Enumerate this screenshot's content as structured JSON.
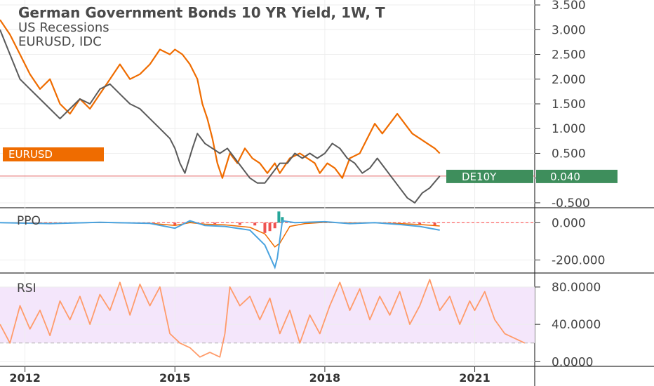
{
  "chart_data": {
    "type": "line",
    "legend": {
      "title": "German Government Bonds 10 YR Yield, 1W, T",
      "overlays": [
        "US Recessions",
        "EURUSD, IDC"
      ]
    },
    "x_ticks": [
      "2012",
      "2015",
      "2018",
      "2021"
    ],
    "panes": [
      {
        "name": "main",
        "y_ticks": [
          "3.500",
          "3.000",
          "2.500",
          "2.000",
          "1.500",
          "1.000",
          "0.500",
          "0.000",
          "-0.500"
        ],
        "ylim": [
          -0.6,
          3.6
        ],
        "series": [
          {
            "name": "EURUSD",
            "color": "#ef6c00",
            "points": [
              [
                2011.5,
                3.2
              ],
              [
                2011.7,
                2.9
              ],
              [
                2011.9,
                2.5
              ],
              [
                2012.1,
                2.1
              ],
              [
                2012.3,
                1.8
              ],
              [
                2012.5,
                2.0
              ],
              [
                2012.7,
                1.5
              ],
              [
                2012.9,
                1.3
              ],
              [
                2013.1,
                1.6
              ],
              [
                2013.3,
                1.4
              ],
              [
                2013.5,
                1.7
              ],
              [
                2013.7,
                2.0
              ],
              [
                2013.9,
                2.3
              ],
              [
                2014.1,
                2.0
              ],
              [
                2014.3,
                2.1
              ],
              [
                2014.5,
                2.3
              ],
              [
                2014.7,
                2.6
              ],
              [
                2014.9,
                2.5
              ],
              [
                2015.0,
                2.6
              ],
              [
                2015.15,
                2.5
              ],
              [
                2015.3,
                2.3
              ],
              [
                2015.45,
                2.0
              ],
              [
                2015.55,
                1.5
              ],
              [
                2015.65,
                1.2
              ],
              [
                2015.75,
                0.8
              ],
              [
                2015.85,
                0.3
              ],
              [
                2015.95,
                0.0
              ],
              [
                2016.1,
                0.5
              ],
              [
                2016.25,
                0.3
              ],
              [
                2016.4,
                0.6
              ],
              [
                2016.55,
                0.4
              ],
              [
                2016.7,
                0.3
              ],
              [
                2016.85,
                0.1
              ],
              [
                2017.0,
                0.3
              ],
              [
                2017.1,
                0.1
              ],
              [
                2017.3,
                0.4
              ],
              [
                2017.5,
                0.5
              ],
              [
                2017.65,
                0.4
              ],
              [
                2017.8,
                0.3
              ],
              [
                2017.9,
                0.1
              ],
              [
                2018.05,
                0.3
              ],
              [
                2018.2,
                0.2
              ],
              [
                2018.35,
                0.0
              ],
              [
                2018.5,
                0.4
              ],
              [
                2018.7,
                0.5
              ],
              [
                2018.85,
                0.8
              ],
              [
                2019.0,
                1.1
              ],
              [
                2019.15,
                0.9
              ],
              [
                2019.3,
                1.1
              ],
              [
                2019.45,
                1.3
              ],
              [
                2019.6,
                1.1
              ],
              [
                2019.75,
                0.9
              ],
              [
                2019.9,
                0.8
              ],
              [
                2020.05,
                0.7
              ],
              [
                2020.2,
                0.6
              ],
              [
                2020.3,
                0.5
              ]
            ]
          },
          {
            "name": "DE10Y",
            "color": "#5a5a5a",
            "points": [
              [
                2011.5,
                3.0
              ],
              [
                2011.7,
                2.5
              ],
              [
                2011.9,
                2.0
              ],
              [
                2012.1,
                1.8
              ],
              [
                2012.3,
                1.6
              ],
              [
                2012.5,
                1.4
              ],
              [
                2012.7,
                1.2
              ],
              [
                2012.9,
                1.4
              ],
              [
                2013.1,
                1.6
              ],
              [
                2013.3,
                1.5
              ],
              [
                2013.5,
                1.8
              ],
              [
                2013.7,
                1.9
              ],
              [
                2013.9,
                1.7
              ],
              [
                2014.1,
                1.5
              ],
              [
                2014.3,
                1.4
              ],
              [
                2014.5,
                1.2
              ],
              [
                2014.7,
                1.0
              ],
              [
                2014.9,
                0.8
              ],
              [
                2015.0,
                0.6
              ],
              [
                2015.1,
                0.3
              ],
              [
                2015.2,
                0.1
              ],
              [
                2015.35,
                0.6
              ],
              [
                2015.45,
                0.9
              ],
              [
                2015.6,
                0.7
              ],
              [
                2015.75,
                0.6
              ],
              [
                2015.9,
                0.5
              ],
              [
                2016.05,
                0.6
              ],
              [
                2016.2,
                0.4
              ],
              [
                2016.35,
                0.2
              ],
              [
                2016.5,
                0.0
              ],
              [
                2016.65,
                -0.1
              ],
              [
                2016.8,
                -0.1
              ],
              [
                2016.95,
                0.1
              ],
              [
                2017.1,
                0.3
              ],
              [
                2017.25,
                0.3
              ],
              [
                2017.4,
                0.5
              ],
              [
                2017.55,
                0.4
              ],
              [
                2017.7,
                0.5
              ],
              [
                2017.85,
                0.4
              ],
              [
                2018.0,
                0.5
              ],
              [
                2018.15,
                0.7
              ],
              [
                2018.3,
                0.6
              ],
              [
                2018.45,
                0.4
              ],
              [
                2018.6,
                0.3
              ],
              [
                2018.75,
                0.1
              ],
              [
                2018.9,
                0.2
              ],
              [
                2019.05,
                0.4
              ],
              [
                2019.2,
                0.2
              ],
              [
                2019.35,
                0.0
              ],
              [
                2019.5,
                -0.2
              ],
              [
                2019.65,
                -0.4
              ],
              [
                2019.8,
                -0.5
              ],
              [
                2019.95,
                -0.3
              ],
              [
                2020.1,
                -0.2
              ],
              [
                2020.3,
                0.04
              ]
            ]
          }
        ],
        "price_line": 0.04,
        "badges": [
          {
            "label": "EURUSD",
            "color": "#ef6c00",
            "value": 0.5
          },
          {
            "label": "DE10Y",
            "color": "#3e8e5c",
            "value": 0.04
          },
          {
            "label": "0.040",
            "color": "#3e8e5c",
            "value": 0.04
          }
        ]
      },
      {
        "name": "PPO",
        "label": "PPO",
        "y_ticks": [
          "0.000",
          "-200.000"
        ],
        "ylim": [
          -270,
          80
        ],
        "line_color": "#4aa3df",
        "signal_color": "#ef6c00",
        "hist_up_color": "#26a69a",
        "hist_down_color": "#ef5350",
        "ppo": [
          [
            2011.5,
            0
          ],
          [
            2012.5,
            -5
          ],
          [
            2013.5,
            2
          ],
          [
            2014.5,
            -4
          ],
          [
            2015.0,
            -30
          ],
          [
            2015.3,
            10
          ],
          [
            2015.6,
            -15
          ],
          [
            2016.0,
            -20
          ],
          [
            2016.5,
            -40
          ],
          [
            2016.8,
            -120
          ],
          [
            2017.0,
            -240
          ],
          [
            2017.05,
            -190
          ],
          [
            2017.15,
            10
          ],
          [
            2017.4,
            0
          ],
          [
            2018.0,
            5
          ],
          [
            2018.5,
            -5
          ],
          [
            2019.0,
            0
          ],
          [
            2019.5,
            -10
          ],
          [
            2019.9,
            -20
          ],
          [
            2020.3,
            -40
          ]
        ],
        "signal": [
          [
            2011.5,
            0
          ],
          [
            2012.5,
            -3
          ],
          [
            2013.5,
            1
          ],
          [
            2014.5,
            -3
          ],
          [
            2015.0,
            -15
          ],
          [
            2015.3,
            0
          ],
          [
            2015.6,
            -8
          ],
          [
            2016.0,
            -12
          ],
          [
            2016.5,
            -25
          ],
          [
            2016.8,
            -60
          ],
          [
            2017.0,
            -130
          ],
          [
            2017.1,
            -110
          ],
          [
            2017.3,
            -20
          ],
          [
            2017.6,
            -5
          ],
          [
            2018.0,
            2
          ],
          [
            2018.5,
            -2
          ],
          [
            2019.0,
            0
          ],
          [
            2019.5,
            -5
          ],
          [
            2019.9,
            -10
          ],
          [
            2020.3,
            -18
          ]
        ],
        "histogram": [
          [
            2012.0,
            -3
          ],
          [
            2013.0,
            2
          ],
          [
            2014.0,
            -2
          ],
          [
            2015.0,
            -15
          ],
          [
            2015.3,
            6
          ],
          [
            2015.8,
            -8
          ],
          [
            2016.3,
            -12
          ],
          [
            2016.6,
            -15
          ],
          [
            2016.8,
            -55
          ],
          [
            2016.9,
            -45
          ],
          [
            2017.0,
            -30
          ],
          [
            2017.08,
            60
          ],
          [
            2017.15,
            30
          ],
          [
            2017.6,
            4
          ],
          [
            2018.2,
            3
          ],
          [
            2018.8,
            -3
          ],
          [
            2019.4,
            -6
          ],
          [
            2019.9,
            -10
          ],
          [
            2020.2,
            -15
          ]
        ]
      },
      {
        "name": "RSI",
        "label": "RSI",
        "y_ticks": [
          "80.0000",
          "40.0000",
          "0.0000"
        ],
        "ylim": [
          -5,
          95
        ],
        "band": [
          20,
          80
        ],
        "color": "#ff9b6a",
        "band_color": "#f4e6fb",
        "points": [
          [
            2011.5,
            40
          ],
          [
            2011.7,
            20
          ],
          [
            2011.9,
            60
          ],
          [
            2012.1,
            35
          ],
          [
            2012.3,
            55
          ],
          [
            2012.5,
            28
          ],
          [
            2012.7,
            65
          ],
          [
            2012.9,
            45
          ],
          [
            2013.1,
            70
          ],
          [
            2013.3,
            40
          ],
          [
            2013.5,
            72
          ],
          [
            2013.7,
            55
          ],
          [
            2013.9,
            85
          ],
          [
            2014.1,
            50
          ],
          [
            2014.3,
            83
          ],
          [
            2014.5,
            60
          ],
          [
            2014.7,
            80
          ],
          [
            2014.9,
            30
          ],
          [
            2015.1,
            20
          ],
          [
            2015.3,
            15
          ],
          [
            2015.5,
            5
          ],
          [
            2015.7,
            10
          ],
          [
            2015.9,
            5
          ],
          [
            2016.0,
            30
          ],
          [
            2016.1,
            80
          ],
          [
            2016.3,
            60
          ],
          [
            2016.5,
            70
          ],
          [
            2016.7,
            45
          ],
          [
            2016.9,
            68
          ],
          [
            2017.1,
            30
          ],
          [
            2017.3,
            55
          ],
          [
            2017.5,
            20
          ],
          [
            2017.7,
            50
          ],
          [
            2017.9,
            30
          ],
          [
            2018.1,
            60
          ],
          [
            2018.3,
            85
          ],
          [
            2018.5,
            55
          ],
          [
            2018.7,
            78
          ],
          [
            2018.9,
            45
          ],
          [
            2019.1,
            70
          ],
          [
            2019.3,
            50
          ],
          [
            2019.5,
            75
          ],
          [
            2019.7,
            40
          ],
          [
            2019.9,
            60
          ],
          [
            2020.1,
            88
          ],
          [
            2020.3,
            55
          ],
          [
            2020.5,
            70
          ],
          [
            2020.7,
            40
          ],
          [
            2020.9,
            65
          ],
          [
            2021.0,
            55
          ],
          [
            2021.2,
            75
          ],
          [
            2021.4,
            45
          ],
          [
            2021.6,
            30
          ],
          [
            2021.8,
            25
          ],
          [
            2022.0,
            20
          ]
        ]
      }
    ]
  }
}
